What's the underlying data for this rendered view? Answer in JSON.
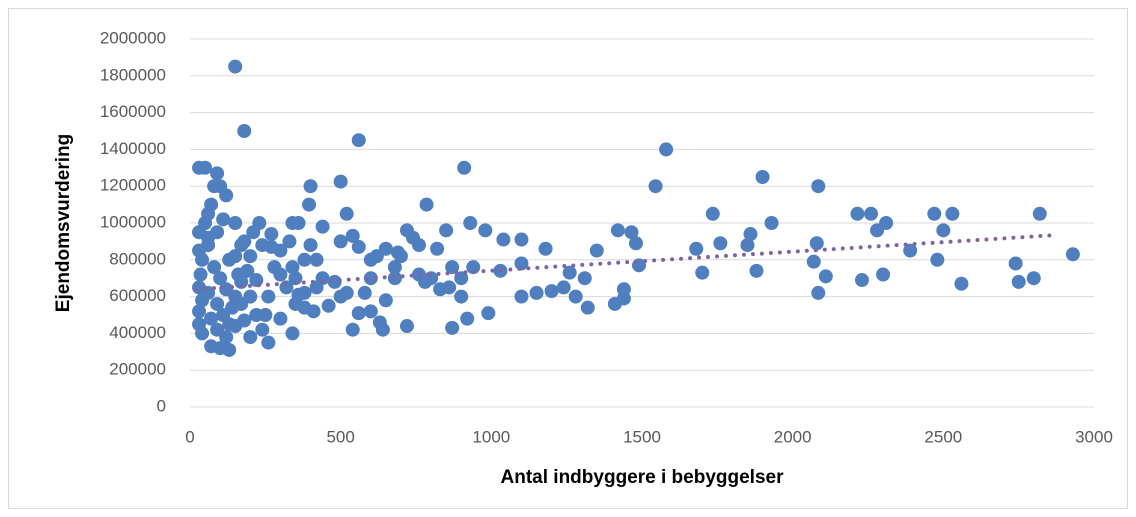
{
  "chart_data": {
    "type": "scatter",
    "xlabel": "Antal indbyggere i bebyggelser",
    "ylabel": "Ejendomsvurdering",
    "xlim": [
      0,
      3000
    ],
    "xticks": [
      0,
      500,
      1000,
      1500,
      2000,
      2500,
      3000
    ],
    "ylim": [
      0,
      2000000
    ],
    "yticks": [
      0,
      200000,
      400000,
      600000,
      800000,
      1000000,
      1200000,
      1400000,
      1600000,
      1800000,
      2000000
    ],
    "grid": true,
    "series": [
      {
        "color": "#4f7fbf",
        "x": [
          150,
          180,
          560,
          1580,
          910,
          30,
          50,
          90,
          1900,
          500,
          80,
          400,
          1545,
          2085,
          120,
          395,
          785,
          1735,
          2215,
          2260,
          2470,
          2530,
          2820,
          520,
          60,
          930,
          1930,
          2310,
          150,
          230,
          340,
          360,
          440,
          720,
          980,
          1420,
          1465,
          1860,
          2500,
          2280,
          1040,
          1100,
          1350,
          1480,
          1760,
          2080,
          1850,
          2390,
          1680,
          1180,
          1030,
          1100,
          1200,
          1320,
          1410,
          1440,
          1440,
          1490,
          1700,
          1880,
          2070,
          2085,
          2110,
          2230,
          2300,
          2480,
          2560,
          2740,
          2750,
          2800,
          2930,
          1280,
          1100,
          1150,
          1240,
          1310,
          1260,
          990,
          920,
          870,
          720,
          640,
          540,
          630,
          600,
          560,
          830,
          860,
          900,
          870,
          800,
          780,
          760,
          820,
          850,
          740,
          690,
          650,
          700,
          680,
          600,
          560,
          540,
          500,
          480,
          440,
          420,
          410,
          380,
          350,
          340,
          300,
          260,
          240,
          220,
          200,
          180,
          150,
          130,
          100,
          70,
          40,
          30,
          30,
          40,
          30,
          35,
          40,
          30,
          30,
          60,
          50,
          70,
          100,
          80,
          100,
          120,
          90,
          110,
          130,
          150,
          170,
          190,
          200,
          170,
          220,
          260,
          280,
          300,
          270,
          320,
          340,
          380,
          420,
          460,
          500,
          520,
          580,
          600,
          620,
          650,
          680,
          760,
          940,
          900,
          200,
          250,
          60,
          70,
          90,
          120,
          140,
          160,
          180,
          210,
          240,
          270,
          300,
          330,
          350,
          360,
          380,
          400,
          90,
          110,
          60,
          130,
          150,
          170
        ],
        "values": [
          1850000,
          1500000,
          1450000,
          1400000,
          1300000,
          1300000,
          1300000,
          1270000,
          1250000,
          1225000,
          1200000,
          1200000,
          1200000,
          1200000,
          1150000,
          1100000,
          1100000,
          1050000,
          1050000,
          1050000,
          1050000,
          1050000,
          1050000,
          1050000,
          1050000,
          1000000,
          1000000,
          1000000,
          1000000,
          1000000,
          1000000,
          1000000,
          980000,
          960000,
          960000,
          960000,
          950000,
          940000,
          960000,
          960000,
          910000,
          910000,
          850000,
          890000,
          890000,
          890000,
          880000,
          850000,
          860000,
          860000,
          740000,
          780000,
          630000,
          540000,
          560000,
          640000,
          590000,
          770000,
          730000,
          740000,
          790000,
          620000,
          710000,
          690000,
          720000,
          800000,
          670000,
          780000,
          680000,
          700000,
          830000,
          600000,
          600000,
          620000,
          650000,
          700000,
          730000,
          510000,
          480000,
          430000,
          440000,
          420000,
          420000,
          460000,
          520000,
          510000,
          640000,
          650000,
          600000,
          760000,
          700000,
          680000,
          880000,
          860000,
          960000,
          920000,
          840000,
          860000,
          820000,
          760000,
          800000,
          870000,
          930000,
          600000,
          680000,
          700000,
          650000,
          520000,
          620000,
          560000,
          400000,
          480000,
          350000,
          420000,
          500000,
          380000,
          470000,
          440000,
          310000,
          320000,
          330000,
          400000,
          450000,
          520000,
          580000,
          650000,
          720000,
          800000,
          850000,
          950000,
          880000,
          1000000,
          1100000,
          1200000,
          760000,
          700000,
          640000,
          560000,
          500000,
          450000,
          600000,
          680000,
          740000,
          820000,
          880000,
          690000,
          600000,
          760000,
          720000,
          870000,
          650000,
          760000,
          800000,
          800000,
          550000,
          900000,
          620000,
          620000,
          700000,
          820000,
          580000,
          700000,
          720000,
          760000,
          700000,
          600000,
          500000,
          620000,
          480000,
          420000,
          380000,
          540000,
          720000,
          900000,
          950000,
          880000,
          940000,
          850000,
          900000,
          700000,
          610000,
          540000,
          880000,
          950000,
          1020000,
          920000,
          800000,
          820000,
          560000
        ]
      }
    ],
    "trendline": {
      "color": "#8064a2",
      "x": [
        20,
        2880
      ],
      "values": [
        640000,
        935000
      ]
    }
  }
}
